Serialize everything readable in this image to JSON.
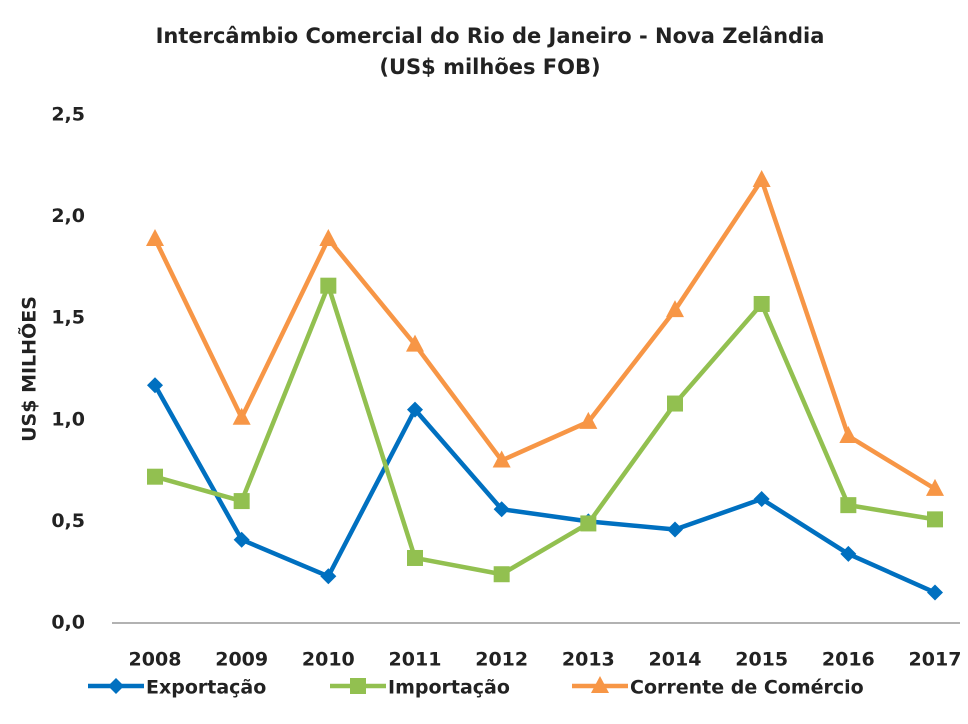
{
  "chart_data": {
    "type": "line",
    "title": "Intercâmbio Comercial do Rio de Janeiro - Nova Zelândia",
    "subtitle": "(US$ milhões FOB)",
    "y_label": "US$ MILHÕES",
    "categories": [
      "2008",
      "2009",
      "2010",
      "2011",
      "2012",
      "2013",
      "2014",
      "2015",
      "2016",
      "2017"
    ],
    "series": [
      {
        "name": "Exportação",
        "color": "#0070c0",
        "marker": "diamond",
        "values": [
          1.17,
          0.41,
          0.23,
          1.05,
          0.56,
          0.5,
          0.46,
          0.61,
          0.34,
          0.15
        ]
      },
      {
        "name": "Importação",
        "color": "#92c050",
        "marker": "square",
        "values": [
          0.72,
          0.6,
          1.66,
          0.32,
          0.24,
          0.49,
          1.08,
          1.57,
          0.58,
          0.51
        ]
      },
      {
        "name": "Corrente de Comércio",
        "color": "#f79646",
        "marker": "triangle",
        "values": [
          1.89,
          1.01,
          1.89,
          1.37,
          0.8,
          0.99,
          1.54,
          2.18,
          0.92,
          0.66
        ]
      }
    ],
    "ylim": [
      0,
      2.5
    ],
    "yticks": [
      {
        "value": 0,
        "label": "0,0"
      },
      {
        "value": 0.5,
        "label": "0,5"
      },
      {
        "value": 1,
        "label": "1,0"
      },
      {
        "value": 1.5,
        "label": "1,5"
      },
      {
        "value": 2,
        "label": "2,0"
      },
      {
        "value": 2.5,
        "label": "2,5"
      }
    ],
    "grid": false,
    "legend": "bottom"
  }
}
